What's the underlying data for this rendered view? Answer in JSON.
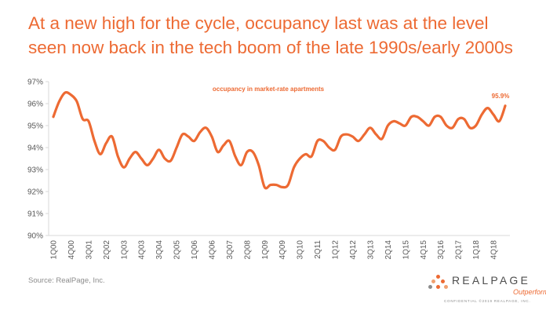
{
  "title_lines": [
    "At a new high for the cycle, occupancy last was at the level",
    "seen now back in the tech boom of the late 1990s/early 2000s"
  ],
  "source": "Source: RealPage, Inc.",
  "logo": {
    "name": "REALPAGE",
    "tagline": "Outperform",
    "confidential": "CONFIDENTIAL ©2019 REALPAGE, INC."
  },
  "colors": {
    "accent": "#ed6a33",
    "axis_text": "#595959",
    "axis_line": "#d9d9d9"
  },
  "chart_data": {
    "type": "line",
    "title": "",
    "xlabel": "",
    "ylabel": "",
    "series": [
      {
        "name": "occupancy in market-rate apartments",
        "values": [
          95.4,
          96.1,
          96.5,
          96.4,
          96.1,
          95.3,
          95.2,
          94.3,
          93.7,
          94.2,
          94.5,
          93.6,
          93.1,
          93.5,
          93.8,
          93.5,
          93.2,
          93.5,
          93.9,
          93.5,
          93.4,
          94.0,
          94.6,
          94.5,
          94.3,
          94.7,
          94.9,
          94.5,
          93.8,
          94.1,
          94.3,
          93.6,
          93.2,
          93.8,
          93.8,
          93.2,
          92.2,
          92.3,
          92.3,
          92.2,
          92.3,
          93.1,
          93.5,
          93.7,
          93.6,
          94.3,
          94.3,
          94.0,
          93.9,
          94.5,
          94.6,
          94.5,
          94.3,
          94.6,
          94.9,
          94.6,
          94.4,
          95.0,
          95.2,
          95.1,
          95.0,
          95.4,
          95.4,
          95.2,
          95.0,
          95.4,
          95.4,
          95.0,
          94.9,
          95.3,
          95.3,
          94.9,
          95.0,
          95.5,
          95.8,
          95.5,
          95.2,
          95.9
        ]
      }
    ],
    "end_label": "95.9%",
    "x_tick_labels": [
      "1Q00",
      "4Q00",
      "3Q01",
      "2Q02",
      "1Q03",
      "4Q03",
      "3Q04",
      "2Q05",
      "1Q06",
      "4Q06",
      "3Q07",
      "2Q08",
      "1Q09",
      "4Q09",
      "3Q10",
      "2Q11",
      "1Q12",
      "4Q12",
      "3Q13",
      "2Q14",
      "1Q15",
      "4Q15",
      "3Q16",
      "2Q17",
      "1Q18",
      "4Q18"
    ],
    "y_ticks": [
      90,
      91,
      92,
      93,
      94,
      95,
      96,
      97
    ],
    "y_tick_labels": [
      "90%",
      "91%",
      "92%",
      "93%",
      "94%",
      "95%",
      "96%",
      "97%"
    ],
    "ylim": [
      90,
      97
    ],
    "grid": false,
    "legend_position": "top-center"
  }
}
